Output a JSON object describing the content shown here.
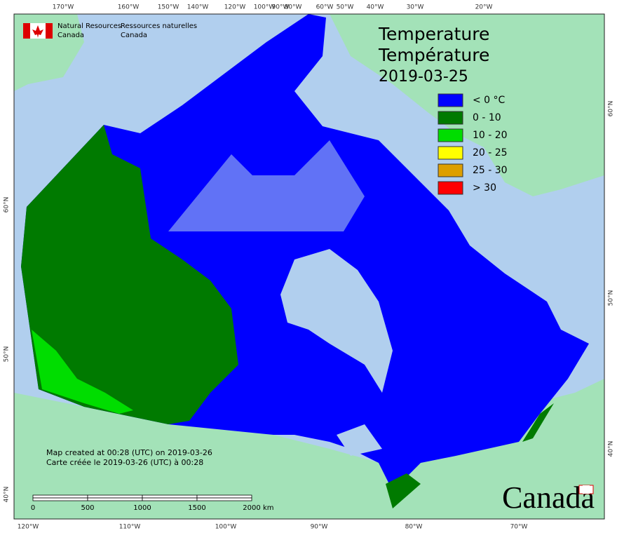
{
  "agency": {
    "en_line1": "Natural Resources",
    "en_line2": "Canada",
    "fr_line1": "Ressources naturelles",
    "fr_line2": "Canada"
  },
  "title": {
    "en": "Temperature",
    "fr": "Température",
    "date": "2019-03-25"
  },
  "legend": [
    {
      "label": "< 0 °C",
      "color": "#0000ff"
    },
    {
      "label": "0 - 10",
      "color": "#007a00"
    },
    {
      "label": "10 - 20",
      "color": "#00dd00"
    },
    {
      "label": "20 - 25",
      "color": "#ffff00"
    },
    {
      "label": "25 - 30",
      "color": "#dd9f00"
    },
    {
      "label": "> 30",
      "color": "#ff0000"
    }
  ],
  "graticule": {
    "top": [
      "170°W",
      "160°W",
      "150°W",
      "140°W",
      "120°W",
      "100°W",
      "90°W",
      "80°W",
      "60°W",
      "50°W",
      "40°W",
      "30°W",
      "20°W"
    ],
    "bottom": [
      "120°W",
      "110°W",
      "100°W",
      "90°W",
      "80°W",
      "70°W"
    ],
    "left": [
      "60°N",
      "50°N",
      "40°N"
    ],
    "right": [
      "60°N",
      "50°N",
      "40°N"
    ]
  },
  "scale_bar": {
    "ticks": [
      "0",
      "500",
      "1000",
      "1500",
      "2000"
    ],
    "unit": "km"
  },
  "notes": {
    "en": "Map created at 00:28 (UTC) on 2019-03-26",
    "fr": "Carte créée le 2019-03-26 (UTC) à 00:28"
  },
  "wordmark": "Canada"
}
